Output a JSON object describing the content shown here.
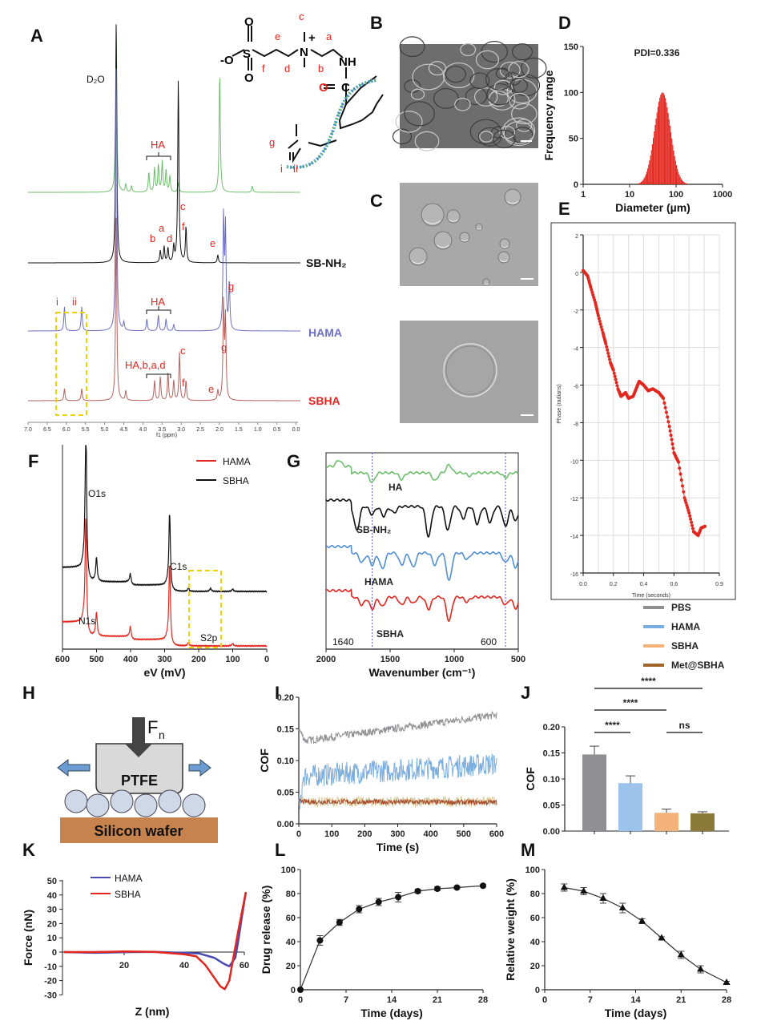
{
  "panel_labels": [
    "A",
    "B",
    "C",
    "D",
    "E",
    "F",
    "G",
    "H",
    "I",
    "J",
    "K",
    "L",
    "M"
  ],
  "colors": {
    "red": "#e3261e",
    "green": "#6cbf6a",
    "purple": "#6d6fc4",
    "brown": "#b5625c",
    "pbs": "#8e8e93",
    "hama": "#7aaee0",
    "sbha": "#f2b27a",
    "met": "#8b7a38",
    "blue_line": "#4f8fd6",
    "k_hama": "#4a4ab5"
  },
  "panel_A": {
    "structure_labels": {
      "c": "c",
      "e": "e",
      "a": "a",
      "f": "f",
      "d": "d",
      "b": "b",
      "g": "g",
      "i": "i",
      "ii": "ii",
      "NH": "NH",
      "O_minus": "-O",
      "S": "S",
      "O": "O",
      "N_plus": "N",
      "plus": "+",
      "C": "C"
    },
    "peak_labels": {
      "d2o": "D₂O",
      "ha1": "HA",
      "ha2": "HA",
      "ha3": "HA,b,a,d",
      "c1": "c",
      "a1": "a",
      "b1": "b",
      "d1": "d",
      "f1": "f",
      "e1": "e",
      "i": "i",
      "ii": "ii",
      "g1": "g",
      "c2": "c",
      "f2": "f",
      "e2": "e",
      "g2": "g"
    },
    "series_labels": {
      "sbnh2": "SB-NH₂",
      "hama": "HAMA",
      "sbha": "SBHA"
    },
    "x_ticks": [
      "7.0",
      "6.5",
      "6.0",
      "5.5",
      "5.0",
      "4.5",
      "4.0",
      "3.5",
      "3.0",
      "2.5",
      "2.0",
      "1.5",
      "1.0",
      "0.5",
      "0.0"
    ],
    "x_label": "f1 (ppm)"
  },
  "panel_B": {
    "image": "sem-micrograph"
  },
  "panel_C": {
    "images": [
      "microspheres-micrograph",
      "single-microsphere-micrograph"
    ]
  },
  "chart_data": [
    {
      "panel": "A",
      "type": "line",
      "xlabel": "f1 (ppm)",
      "xlim": [
        7.0,
        0.0
      ],
      "series": [
        {
          "name": "",
          "color": "#6cbf6a",
          "peaks": [
            [
              4.7,
              210
            ],
            [
              4.45,
              10
            ],
            [
              4.3,
              8
            ],
            [
              3.85,
              25
            ],
            [
              3.7,
              30
            ],
            [
              3.6,
              34
            ],
            [
              3.5,
              38
            ],
            [
              3.4,
              28
            ],
            [
              3.3,
              20
            ],
            [
              3.08,
              12
            ],
            [
              2.0,
              150
            ],
            [
              1.15,
              8
            ]
          ]
        },
        {
          "name": "SB-NH₂",
          "color": "#111111",
          "peaks": [
            [
              4.7,
              300
            ],
            [
              3.55,
              15
            ],
            [
              3.45,
              20
            ],
            [
              3.35,
              18
            ],
            [
              3.2,
              20
            ],
            [
              3.08,
              230
            ],
            [
              2.88,
              45
            ],
            [
              2.05,
              10
            ]
          ]
        },
        {
          "name": "HAMA",
          "color": "#6d6fc4",
          "peaks": [
            [
              6.05,
              30
            ],
            [
              5.6,
              30
            ],
            [
              4.7,
              330
            ],
            [
              4.5,
              10
            ],
            [
              3.9,
              15
            ],
            [
              3.6,
              20
            ],
            [
              3.4,
              15
            ],
            [
              3.2,
              8
            ],
            [
              1.9,
              140
            ],
            [
              1.85,
              125
            ],
            [
              1.75,
              60
            ]
          ]
        },
        {
          "name": "SBHA",
          "color": "#b5625c",
          "peaks": [
            [
              6.05,
              15
            ],
            [
              5.6,
              15
            ],
            [
              4.7,
              230
            ],
            [
              4.45,
              12
            ],
            [
              3.7,
              25
            ],
            [
              3.55,
              30
            ],
            [
              3.35,
              35
            ],
            [
              3.2,
              25
            ],
            [
              3.05,
              60
            ],
            [
              2.88,
              25
            ],
            [
              2.05,
              12
            ],
            [
              1.9,
              120
            ],
            [
              1.85,
              100
            ]
          ]
        }
      ]
    },
    {
      "panel": "D",
      "type": "bar",
      "title": "PDI=0.336",
      "xlabel": "Diameter (µm)",
      "ylabel": "Frequency range",
      "xscale": "log",
      "xlim": [
        1,
        1000
      ],
      "ylim": [
        0,
        150
      ],
      "x_ticks": [
        "1",
        "10",
        "100",
        "1000"
      ],
      "y_ticks": [
        "0",
        "50",
        "100",
        "150"
      ],
      "peak_diameter": 50,
      "peak_value": 100,
      "color": "#e3261e"
    },
    {
      "panel": "E",
      "type": "scatter",
      "xlabel": "Time (seconds)",
      "ylabel": "Phase (radians)",
      "xlim": [
        0,
        0.9
      ],
      "ylim": [
        -16,
        2
      ],
      "grid": true,
      "x_ticks": [
        "0.0",
        "0.2",
        "0.4",
        "0.6",
        "0.9"
      ],
      "y_ticks": [
        "2",
        "0",
        "-2",
        "-4",
        "-6",
        "-8",
        "-10",
        "-12",
        "-14",
        "-16"
      ],
      "x": [
        0,
        0.03,
        0.05,
        0.08,
        0.1,
        0.13,
        0.15,
        0.18,
        0.2,
        0.23,
        0.25,
        0.28,
        0.3,
        0.33,
        0.35,
        0.37,
        0.4,
        0.43,
        0.46,
        0.5,
        0.53,
        0.57,
        0.6,
        0.63,
        0.67,
        0.7,
        0.73,
        0.76,
        0.78,
        0.81
      ],
      "y": [
        0.1,
        -0.2,
        -0.8,
        -1.6,
        -2.3,
        -3.2,
        -3.8,
        -4.8,
        -5.2,
        -6.2,
        -6.6,
        -6.4,
        -6.7,
        -6.6,
        -6.2,
        -5.8,
        -6.0,
        -6.3,
        -6.2,
        -6.4,
        -6.7,
        -8.2,
        -9.6,
        -10.1,
        -12.0,
        -12.8,
        -13.8,
        -14.0,
        -13.6,
        -13.5
      ]
    },
    {
      "panel": "F",
      "type": "line",
      "xlabel": "eV (mV)",
      "xlim": [
        600,
        0
      ],
      "x_ticks": [
        "600",
        "500",
        "400",
        "300",
        "200",
        "100",
        "0"
      ],
      "legend": [
        {
          "name": "HAMA",
          "color": "#e3261e"
        },
        {
          "name": "SBHA",
          "color": "#111111"
        }
      ],
      "annotations": [
        "O1s",
        "C1s",
        "N1s",
        "S2p"
      ],
      "series": [
        {
          "name": "SBHA",
          "color": "#111111",
          "peaks": [
            [
              531,
              190
            ],
            [
              500,
              30
            ],
            [
              400,
              12
            ],
            [
              285,
              95
            ],
            [
              230,
              4
            ],
            [
              165,
              4
            ],
            [
              100,
              3
            ]
          ]
        },
        {
          "name": "HAMA",
          "color": "#e3261e",
          "peaks": [
            [
              531,
              140
            ],
            [
              500,
              30
            ],
            [
              400,
              14
            ],
            [
              285,
              100
            ],
            [
              230,
              4
            ],
            [
              100,
              3
            ]
          ]
        }
      ]
    },
    {
      "panel": "G",
      "type": "line",
      "xlabel": "Wavenumber (cm⁻¹)",
      "xlim": [
        2000,
        500
      ],
      "x_ticks": [
        "2000",
        "1500",
        "1000",
        "500"
      ],
      "annotations": [
        "1640",
        "600"
      ],
      "series": [
        {
          "name": "HA",
          "color": "#6cbf6a",
          "dips": [
            [
              1900,
              -8
            ],
            [
              1640,
              12
            ],
            [
              1410,
              8
            ],
            [
              1150,
              10
            ],
            [
              1040,
              -10
            ],
            [
              880,
              4
            ],
            [
              600,
              6
            ]
          ]
        },
        {
          "name": "SB-NH₂",
          "color": "#111111",
          "dips": [
            [
              1760,
              30
            ],
            [
              1640,
              10
            ],
            [
              1550,
              12
            ],
            [
              1470,
              8
            ],
            [
              1200,
              38
            ],
            [
              1050,
              30
            ],
            [
              930,
              15
            ],
            [
              820,
              22
            ],
            [
              720,
              20
            ],
            [
              600,
              25
            ],
            [
              520,
              18
            ]
          ]
        },
        {
          "name": "HAMA",
          "color": "#4f8fd6",
          "dips": [
            [
              1720,
              12
            ],
            [
              1640,
              15
            ],
            [
              1560,
              20
            ],
            [
              1410,
              15
            ],
            [
              1320,
              18
            ],
            [
              1150,
              15
            ],
            [
              1040,
              35
            ],
            [
              900,
              8
            ],
            [
              600,
              12
            ],
            [
              520,
              18
            ]
          ]
        },
        {
          "name": "SBHA",
          "color": "#e3261e",
          "dips": [
            [
              1720,
              10
            ],
            [
              1640,
              15
            ],
            [
              1560,
              12
            ],
            [
              1410,
              10
            ],
            [
              1320,
              8
            ],
            [
              1200,
              15
            ],
            [
              1040,
              30
            ],
            [
              900,
              6
            ],
            [
              600,
              10
            ],
            [
              520,
              14
            ]
          ]
        }
      ]
    },
    {
      "panel": "I",
      "type": "line",
      "xlabel": "Time (s)",
      "ylabel": "COF",
      "xlim": [
        0,
        600
      ],
      "ylim": [
        0,
        0.2
      ],
      "x_ticks": [
        "0",
        "100",
        "200",
        "300",
        "400",
        "500",
        "600"
      ],
      "y_ticks": [
        "0.00",
        "0.05",
        "0.10",
        "0.15",
        "0.20"
      ],
      "series": [
        {
          "name": "PBS",
          "color": "#8e8e93",
          "start": 0.13,
          "end": 0.172,
          "noise": 0.006
        },
        {
          "name": "HAMA",
          "color": "#7aaee0",
          "start": 0.075,
          "end": 0.095,
          "noise": 0.018
        },
        {
          "name": "SBHA",
          "color": "#d8c99a",
          "start": 0.035,
          "end": 0.035,
          "noise": 0.008
        },
        {
          "name": "Met@SBHA",
          "color": "#a84a2a",
          "start": 0.035,
          "end": 0.034,
          "noise": 0.004
        }
      ]
    },
    {
      "panel": "J",
      "type": "bar",
      "ylabel": "COF",
      "ylim": [
        0,
        0.2
      ],
      "y_ticks": [
        "0.00",
        "0.05",
        "0.10",
        "0.15",
        "0.20"
      ],
      "categories": [
        "PBS",
        "HAMA",
        "SBHA",
        "Met@SBHA"
      ],
      "values": [
        0.147,
        0.092,
        0.035,
        0.034
      ],
      "errors": [
        0.016,
        0.014,
        0.007,
        0.003
      ],
      "colors": [
        "#8e8e93",
        "#9cc3ec",
        "#f2b27a",
        "#8b7a38"
      ],
      "significance": [
        {
          "pair": [
            0,
            3
          ],
          "label": "****"
        },
        {
          "pair": [
            0,
            2
          ],
          "label": "****"
        },
        {
          "pair": [
            0,
            1
          ],
          "label": "****"
        },
        {
          "pair": [
            2,
            3
          ],
          "label": "ns"
        }
      ]
    },
    {
      "panel": "K",
      "type": "line",
      "xlabel": "Z (nm)",
      "ylabel": "Force (nN)",
      "xlim": [
        0,
        60
      ],
      "ylim": [
        -30,
        50
      ],
      "x_ticks": [
        "20",
        "40",
        "60"
      ],
      "y_ticks": [
        "50",
        "40",
        "30",
        "20",
        "10",
        "0",
        "-10",
        "-20",
        "-30"
      ],
      "series": [
        {
          "name": "HAMA",
          "color": "#4a4ab5",
          "x": [
            0,
            10,
            20,
            30,
            40,
            45,
            50,
            53,
            55,
            57,
            58,
            59,
            60.5
          ],
          "y": [
            0,
            0,
            -0.5,
            0,
            0,
            -1,
            -4,
            -8,
            -10,
            -4,
            8,
            22,
            42
          ]
        },
        {
          "name": "SBHA",
          "color": "#e3261e",
          "x": [
            0,
            10,
            20,
            30,
            40,
            44,
            47,
            50,
            52,
            53.5,
            55,
            56,
            58,
            60.5
          ],
          "y": [
            0,
            0.5,
            0,
            0,
            -1,
            -3,
            -9,
            -18,
            -24,
            -26,
            -20,
            -8,
            15,
            42
          ]
        }
      ]
    },
    {
      "panel": "L",
      "type": "line",
      "xlabel": "Time (days)",
      "ylabel": "Drug release (%)",
      "xlim": [
        0,
        28
      ],
      "ylim": [
        0,
        100
      ],
      "x_ticks": [
        "0",
        "7",
        "14",
        "21",
        "28"
      ],
      "y_ticks": [
        "0",
        "20",
        "40",
        "60",
        "80",
        "100"
      ],
      "x": [
        0,
        3,
        6,
        9,
        12,
        15,
        18,
        21,
        24,
        28
      ],
      "y": [
        0,
        41,
        56,
        67,
        73,
        77,
        82,
        84,
        85,
        86.5
      ],
      "errors": [
        0,
        4,
        2.5,
        3,
        3,
        4,
        1.5,
        1.5,
        1,
        1
      ],
      "marker": "circle"
    },
    {
      "panel": "M",
      "type": "line",
      "xlabel": "Time (days)",
      "ylabel": "Relative weight (%)",
      "xlim": [
        0,
        28
      ],
      "ylim": [
        0,
        100
      ],
      "x_ticks": [
        "0",
        "7",
        "14",
        "21",
        "28"
      ],
      "y_ticks": [
        "0",
        "20",
        "40",
        "60",
        "80",
        "100"
      ],
      "x": [
        3,
        6,
        9,
        12,
        15,
        18,
        21,
        24,
        28
      ],
      "y": [
        85,
        82,
        76,
        68,
        57,
        43,
        29,
        17,
        6
      ],
      "errors": [
        3,
        3,
        4,
        4,
        2,
        1,
        3,
        3,
        1
      ],
      "marker": "triangle"
    }
  ],
  "legend_E": [
    {
      "name": "PBS",
      "color": "#8e8e93"
    },
    {
      "name": "HAMA",
      "color": "#7aaee0"
    },
    {
      "name": "SBHA",
      "color": "#f2b27a"
    },
    {
      "name": "Met@SBHA",
      "color": "#a0652a"
    }
  ],
  "legend_K": [
    {
      "name": "HAMA",
      "color": "#4a4ab5"
    },
    {
      "name": "SBHA",
      "color": "#e3261e"
    }
  ],
  "panel_H": {
    "force_label": "F",
    "force_sub": "n",
    "block_label": "PTFE",
    "substrate_label": "Silicon wafer"
  }
}
